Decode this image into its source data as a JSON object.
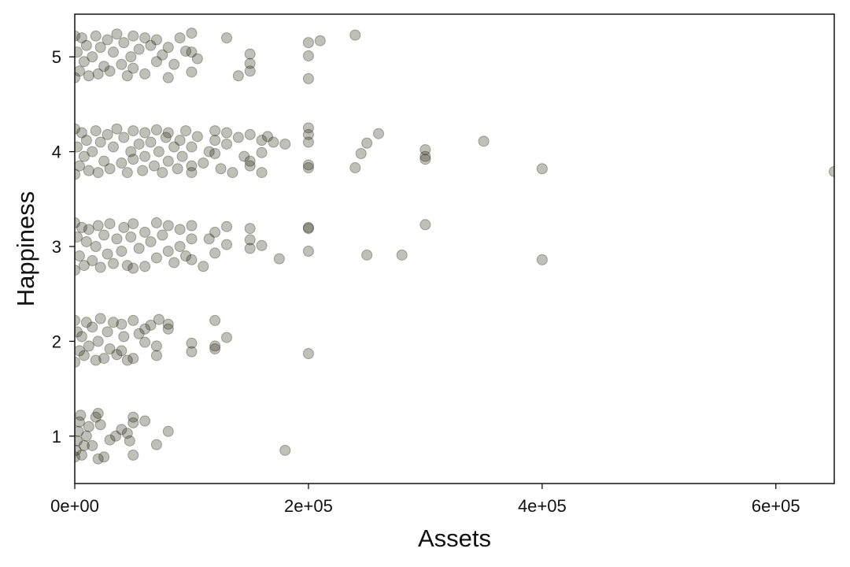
{
  "chart_data": {
    "type": "scatter",
    "title": "",
    "xlabel": "Assets",
    "ylabel": "Happiness",
    "xlim": [
      0,
      650000
    ],
    "ylim": [
      0.5,
      5.45
    ],
    "x_ticks": [
      {
        "value": 0,
        "label": "0e+00"
      },
      {
        "value": 200000,
        "label": "2e+05"
      },
      {
        "value": 400000,
        "label": "4e+05"
      },
      {
        "value": 600000,
        "label": "6e+05"
      }
    ],
    "y_ticks": [
      {
        "value": 1,
        "label": "1"
      },
      {
        "value": 2,
        "label": "2"
      },
      {
        "value": 3,
        "label": "3"
      },
      {
        "value": 4,
        "label": "4"
      },
      {
        "value": 5,
        "label": "5"
      }
    ],
    "grid": false,
    "point_color": "#1c1c08",
    "point_opacity": 0.28,
    "series": [
      {
        "points": [
          {
            "x": 0,
            "y": 0.78
          },
          {
            "x": 1000,
            "y": 0.85
          },
          {
            "x": 2000,
            "y": 0.95
          },
          {
            "x": 3000,
            "y": 1.05
          },
          {
            "x": 4000,
            "y": 1.15
          },
          {
            "x": 5000,
            "y": 1.22
          },
          {
            "x": 6000,
            "y": 0.8
          },
          {
            "x": 8000,
            "y": 0.9
          },
          {
            "x": 10000,
            "y": 1.0
          },
          {
            "x": 12000,
            "y": 1.1
          },
          {
            "x": 15000,
            "y": 0.9
          },
          {
            "x": 18000,
            "y": 1.2
          },
          {
            "x": 20000,
            "y": 0.76
          },
          {
            "x": 20000,
            "y": 1.24
          },
          {
            "x": 22000,
            "y": 1.12
          },
          {
            "x": 25000,
            "y": 0.78
          },
          {
            "x": 30000,
            "y": 0.96
          },
          {
            "x": 35000,
            "y": 1.0
          },
          {
            "x": 40000,
            "y": 1.07
          },
          {
            "x": 45000,
            "y": 1.03
          },
          {
            "x": 47000,
            "y": 0.95
          },
          {
            "x": 50000,
            "y": 1.2
          },
          {
            "x": 50000,
            "y": 1.14
          },
          {
            "x": 50000,
            "y": 0.8
          },
          {
            "x": 60000,
            "y": 1.16
          },
          {
            "x": 70000,
            "y": 0.91
          },
          {
            "x": 80000,
            "y": 1.05
          },
          {
            "x": 180000,
            "y": 0.85
          },
          {
            "x": 0,
            "y": 1.78
          },
          {
            "x": 0,
            "y": 2.22
          },
          {
            "x": 2000,
            "y": 2.1
          },
          {
            "x": 4000,
            "y": 1.9
          },
          {
            "x": 6000,
            "y": 2.05
          },
          {
            "x": 8000,
            "y": 1.85
          },
          {
            "x": 10000,
            "y": 2.2
          },
          {
            "x": 12000,
            "y": 1.95
          },
          {
            "x": 15000,
            "y": 2.15
          },
          {
            "x": 18000,
            "y": 1.8
          },
          {
            "x": 20000,
            "y": 2.0
          },
          {
            "x": 22000,
            "y": 2.24
          },
          {
            "x": 25000,
            "y": 1.82
          },
          {
            "x": 28000,
            "y": 2.1
          },
          {
            "x": 30000,
            "y": 1.92
          },
          {
            "x": 33000,
            "y": 2.2
          },
          {
            "x": 36000,
            "y": 1.86
          },
          {
            "x": 40000,
            "y": 2.18
          },
          {
            "x": 40000,
            "y": 1.9
          },
          {
            "x": 42000,
            "y": 2.05
          },
          {
            "x": 45000,
            "y": 1.8
          },
          {
            "x": 50000,
            "y": 1.82
          },
          {
            "x": 50000,
            "y": 2.22
          },
          {
            "x": 55000,
            "y": 2.08
          },
          {
            "x": 60000,
            "y": 2.13
          },
          {
            "x": 60000,
            "y": 1.99
          },
          {
            "x": 65000,
            "y": 2.17
          },
          {
            "x": 70000,
            "y": 1.85
          },
          {
            "x": 70000,
            "y": 1.95
          },
          {
            "x": 72000,
            "y": 2.23
          },
          {
            "x": 80000,
            "y": 2.18
          },
          {
            "x": 80000,
            "y": 2.13
          },
          {
            "x": 100000,
            "y": 1.98
          },
          {
            "x": 100000,
            "y": 1.89
          },
          {
            "x": 120000,
            "y": 2.22
          },
          {
            "x": 120000,
            "y": 1.95
          },
          {
            "x": 120000,
            "y": 1.92
          },
          {
            "x": 130000,
            "y": 2.04
          },
          {
            "x": 200000,
            "y": 1.87
          },
          {
            "x": 0,
            "y": 2.75
          },
          {
            "x": 0,
            "y": 3.25
          },
          {
            "x": 2000,
            "y": 3.1
          },
          {
            "x": 4000,
            "y": 2.9
          },
          {
            "x": 6000,
            "y": 3.2
          },
          {
            "x": 8000,
            "y": 2.8
          },
          {
            "x": 10000,
            "y": 3.05
          },
          {
            "x": 12000,
            "y": 3.18
          },
          {
            "x": 15000,
            "y": 2.85
          },
          {
            "x": 18000,
            "y": 3.0
          },
          {
            "x": 20000,
            "y": 3.22
          },
          {
            "x": 22000,
            "y": 2.78
          },
          {
            "x": 25000,
            "y": 3.12
          },
          {
            "x": 28000,
            "y": 2.92
          },
          {
            "x": 30000,
            "y": 3.24
          },
          {
            "x": 33000,
            "y": 2.82
          },
          {
            "x": 36000,
            "y": 3.08
          },
          {
            "x": 40000,
            "y": 2.95
          },
          {
            "x": 42000,
            "y": 3.2
          },
          {
            "x": 45000,
            "y": 2.8
          },
          {
            "x": 48000,
            "y": 3.1
          },
          {
            "x": 50000,
            "y": 3.24
          },
          {
            "x": 50000,
            "y": 2.77
          },
          {
            "x": 55000,
            "y": 2.98
          },
          {
            "x": 60000,
            "y": 3.15
          },
          {
            "x": 60000,
            "y": 2.79
          },
          {
            "x": 65000,
            "y": 3.05
          },
          {
            "x": 70000,
            "y": 3.25
          },
          {
            "x": 70000,
            "y": 2.88
          },
          {
            "x": 75000,
            "y": 3.12
          },
          {
            "x": 80000,
            "y": 2.95
          },
          {
            "x": 80000,
            "y": 3.22
          },
          {
            "x": 85000,
            "y": 2.83
          },
          {
            "x": 90000,
            "y": 3.0
          },
          {
            "x": 90000,
            "y": 3.18
          },
          {
            "x": 95000,
            "y": 2.9
          },
          {
            "x": 100000,
            "y": 3.08
          },
          {
            "x": 100000,
            "y": 2.86
          },
          {
            "x": 100000,
            "y": 3.22
          },
          {
            "x": 110000,
            "y": 2.79
          },
          {
            "x": 115000,
            "y": 3.08
          },
          {
            "x": 120000,
            "y": 3.15
          },
          {
            "x": 120000,
            "y": 2.93
          },
          {
            "x": 130000,
            "y": 3.02
          },
          {
            "x": 130000,
            "y": 3.21
          },
          {
            "x": 150000,
            "y": 3.07
          },
          {
            "x": 150000,
            "y": 2.98
          },
          {
            "x": 150000,
            "y": 3.19
          },
          {
            "x": 160000,
            "y": 3.01
          },
          {
            "x": 175000,
            "y": 2.87
          },
          {
            "x": 200000,
            "y": 3.2
          },
          {
            "x": 200000,
            "y": 3.19
          },
          {
            "x": 200000,
            "y": 2.95
          },
          {
            "x": 250000,
            "y": 2.91
          },
          {
            "x": 280000,
            "y": 2.91
          },
          {
            "x": 300000,
            "y": 3.23
          },
          {
            "x": 400000,
            "y": 2.86
          },
          {
            "x": 0,
            "y": 3.76
          },
          {
            "x": 0,
            "y": 4.24
          },
          {
            "x": 2000,
            "y": 4.05
          },
          {
            "x": 4000,
            "y": 3.85
          },
          {
            "x": 6000,
            "y": 4.2
          },
          {
            "x": 8000,
            "y": 3.95
          },
          {
            "x": 10000,
            "y": 4.12
          },
          {
            "x": 12000,
            "y": 3.8
          },
          {
            "x": 15000,
            "y": 4.0
          },
          {
            "x": 18000,
            "y": 4.22
          },
          {
            "x": 20000,
            "y": 3.78
          },
          {
            "x": 22000,
            "y": 4.1
          },
          {
            "x": 25000,
            "y": 3.9
          },
          {
            "x": 28000,
            "y": 4.18
          },
          {
            "x": 30000,
            "y": 3.82
          },
          {
            "x": 33000,
            "y": 4.05
          },
          {
            "x": 36000,
            "y": 4.24
          },
          {
            "x": 40000,
            "y": 3.88
          },
          {
            "x": 42000,
            "y": 4.15
          },
          {
            "x": 45000,
            "y": 3.78
          },
          {
            "x": 48000,
            "y": 4.0
          },
          {
            "x": 50000,
            "y": 4.22
          },
          {
            "x": 50000,
            "y": 3.92
          },
          {
            "x": 55000,
            "y": 4.08
          },
          {
            "x": 58000,
            "y": 3.8
          },
          {
            "x": 60000,
            "y": 4.2
          },
          {
            "x": 60000,
            "y": 3.95
          },
          {
            "x": 65000,
            "y": 4.1
          },
          {
            "x": 68000,
            "y": 3.85
          },
          {
            "x": 70000,
            "y": 4.23
          },
          {
            "x": 72000,
            "y": 4.0
          },
          {
            "x": 75000,
            "y": 3.78
          },
          {
            "x": 78000,
            "y": 4.15
          },
          {
            "x": 80000,
            "y": 3.9
          },
          {
            "x": 80000,
            "y": 4.2
          },
          {
            "x": 85000,
            "y": 4.05
          },
          {
            "x": 88000,
            "y": 3.82
          },
          {
            "x": 90000,
            "y": 4.12
          },
          {
            "x": 92000,
            "y": 3.95
          },
          {
            "x": 95000,
            "y": 4.22
          },
          {
            "x": 100000,
            "y": 3.85
          },
          {
            "x": 100000,
            "y": 4.05
          },
          {
            "x": 100000,
            "y": 3.78
          },
          {
            "x": 105000,
            "y": 4.16
          },
          {
            "x": 110000,
            "y": 3.88
          },
          {
            "x": 115000,
            "y": 4.0
          },
          {
            "x": 120000,
            "y": 4.22
          },
          {
            "x": 120000,
            "y": 3.98
          },
          {
            "x": 120000,
            "y": 4.12
          },
          {
            "x": 125000,
            "y": 3.82
          },
          {
            "x": 130000,
            "y": 4.08
          },
          {
            "x": 130000,
            "y": 4.2
          },
          {
            "x": 135000,
            "y": 3.78
          },
          {
            "x": 140000,
            "y": 4.15
          },
          {
            "x": 145000,
            "y": 3.95
          },
          {
            "x": 150000,
            "y": 3.9
          },
          {
            "x": 150000,
            "y": 4.18
          },
          {
            "x": 150000,
            "y": 3.85
          },
          {
            "x": 160000,
            "y": 3.78
          },
          {
            "x": 160000,
            "y": 4.12
          },
          {
            "x": 160000,
            "y": 3.99
          },
          {
            "x": 165000,
            "y": 4.16
          },
          {
            "x": 170000,
            "y": 4.1
          },
          {
            "x": 180000,
            "y": 4.08
          },
          {
            "x": 200000,
            "y": 4.25
          },
          {
            "x": 200000,
            "y": 4.18
          },
          {
            "x": 200000,
            "y": 4.1
          },
          {
            "x": 200000,
            "y": 3.86
          },
          {
            "x": 200000,
            "y": 3.83
          },
          {
            "x": 240000,
            "y": 3.83
          },
          {
            "x": 245000,
            "y": 3.98
          },
          {
            "x": 250000,
            "y": 4.09
          },
          {
            "x": 260000,
            "y": 4.19
          },
          {
            "x": 300000,
            "y": 4.02
          },
          {
            "x": 300000,
            "y": 3.95
          },
          {
            "x": 300000,
            "y": 3.92
          },
          {
            "x": 350000,
            "y": 4.11
          },
          {
            "x": 400000,
            "y": 3.82
          },
          {
            "x": 650000,
            "y": 3.79
          },
          {
            "x": 0,
            "y": 4.78
          },
          {
            "x": 0,
            "y": 5.22
          },
          {
            "x": 2000,
            "y": 5.05
          },
          {
            "x": 4000,
            "y": 4.85
          },
          {
            "x": 6000,
            "y": 5.2
          },
          {
            "x": 8000,
            "y": 4.95
          },
          {
            "x": 10000,
            "y": 5.12
          },
          {
            "x": 12000,
            "y": 4.8
          },
          {
            "x": 15000,
            "y": 5.0
          },
          {
            "x": 18000,
            "y": 5.22
          },
          {
            "x": 20000,
            "y": 4.82
          },
          {
            "x": 22000,
            "y": 5.1
          },
          {
            "x": 25000,
            "y": 4.9
          },
          {
            "x": 28000,
            "y": 5.18
          },
          {
            "x": 30000,
            "y": 4.85
          },
          {
            "x": 33000,
            "y": 5.05
          },
          {
            "x": 36000,
            "y": 5.24
          },
          {
            "x": 40000,
            "y": 4.92
          },
          {
            "x": 42000,
            "y": 5.15
          },
          {
            "x": 45000,
            "y": 4.8
          },
          {
            "x": 48000,
            "y": 5.0
          },
          {
            "x": 50000,
            "y": 5.22
          },
          {
            "x": 50000,
            "y": 4.88
          },
          {
            "x": 55000,
            "y": 5.08
          },
          {
            "x": 60000,
            "y": 5.2
          },
          {
            "x": 60000,
            "y": 4.82
          },
          {
            "x": 65000,
            "y": 5.12
          },
          {
            "x": 70000,
            "y": 4.95
          },
          {
            "x": 70000,
            "y": 5.18
          },
          {
            "x": 75000,
            "y": 5.02
          },
          {
            "x": 80000,
            "y": 4.78
          },
          {
            "x": 80000,
            "y": 5.1
          },
          {
            "x": 85000,
            "y": 4.92
          },
          {
            "x": 90000,
            "y": 5.2
          },
          {
            "x": 95000,
            "y": 5.06
          },
          {
            "x": 100000,
            "y": 5.25
          },
          {
            "x": 100000,
            "y": 4.84
          },
          {
            "x": 100000,
            "y": 5.05
          },
          {
            "x": 105000,
            "y": 4.98
          },
          {
            "x": 130000,
            "y": 5.2
          },
          {
            "x": 140000,
            "y": 4.8
          },
          {
            "x": 150000,
            "y": 5.03
          },
          {
            "x": 150000,
            "y": 4.93
          },
          {
            "x": 150000,
            "y": 4.85
          },
          {
            "x": 200000,
            "y": 5.15
          },
          {
            "x": 200000,
            "y": 5.01
          },
          {
            "x": 200000,
            "y": 4.77
          },
          {
            "x": 210000,
            "y": 5.17
          },
          {
            "x": 240000,
            "y": 5.23
          }
        ]
      }
    ]
  }
}
